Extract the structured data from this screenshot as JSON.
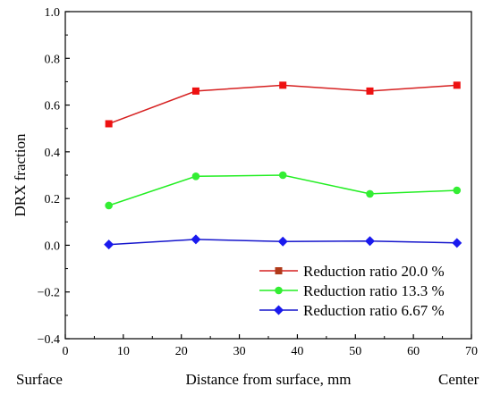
{
  "chart_data": {
    "type": "line",
    "title": "",
    "xlabel": "Distance from surface, mm",
    "ylabel": "DRX fraction",
    "xlim": [
      0,
      70
    ],
    "ylim": [
      -0.4,
      1.0
    ],
    "xticks": [
      0,
      10,
      20,
      30,
      40,
      50,
      60,
      70
    ],
    "yticks": [
      -0.4,
      -0.2,
      0.0,
      0.2,
      0.4,
      0.6,
      0.8,
      1.0
    ],
    "ytick_labels": [
      "−0.4",
      "−0.2",
      "0.0",
      "0.2",
      "0.4",
      "0.6",
      "0.8",
      "1.0"
    ],
    "x_end_labels": {
      "left": "Surface",
      "right": "Center"
    },
    "grid": false,
    "legend_position": "bottom-right",
    "series": [
      {
        "name": "Reduction ratio 20.0 %",
        "marker": "square",
        "line_color": "#d62020",
        "marker_color": "#ee1111",
        "legend_marker_color": "#b03a1a",
        "x": [
          7.5,
          22.5,
          37.5,
          52.5,
          67.5
        ],
        "y": [
          0.52,
          0.66,
          0.685,
          0.66,
          0.685
        ]
      },
      {
        "name": "Reduction ratio 13.3 %",
        "marker": "circle",
        "line_color": "#22ee22",
        "marker_color": "#33ee33",
        "legend_marker_color": "#33ee33",
        "x": [
          7.5,
          22.5,
          37.5,
          52.5,
          67.5
        ],
        "y": [
          0.17,
          0.295,
          0.3,
          0.22,
          0.235
        ]
      },
      {
        "name": "Reduction ratio 6.67 %",
        "marker": "diamond",
        "line_color": "#1515cc",
        "marker_color": "#1a1aee",
        "legend_marker_color": "#1a1aee",
        "x": [
          7.5,
          22.5,
          37.5,
          52.5,
          67.5
        ],
        "y": [
          0.003,
          0.025,
          0.016,
          0.018,
          0.01
        ]
      }
    ]
  }
}
